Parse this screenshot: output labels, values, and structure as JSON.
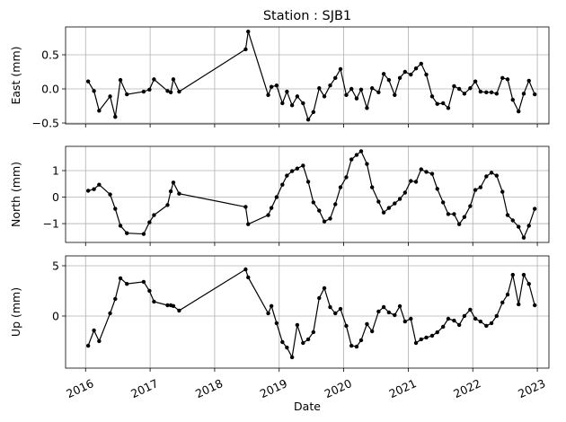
{
  "chart_data": [
    {
      "type": "line",
      "title": "Station : SJB1",
      "ylabel": "East (mm)",
      "color": "#000000",
      "grid": true,
      "xticklabels": false,
      "x": [
        2016.04,
        2016.13,
        2016.21,
        2016.38,
        2016.46,
        2016.54,
        2016.64,
        2016.9,
        2016.99,
        2017.06,
        2017.27,
        2017.32,
        2017.36,
        2017.45,
        2018.48,
        2018.52,
        2018.83,
        2018.88,
        2018.96,
        2019.05,
        2019.12,
        2019.2,
        2019.28,
        2019.37,
        2019.45,
        2019.53,
        2019.62,
        2019.7,
        2019.79,
        2019.87,
        2019.95,
        2020.04,
        2020.12,
        2020.2,
        2020.27,
        2020.36,
        2020.44,
        2020.54,
        2020.62,
        2020.7,
        2020.79,
        2020.87,
        2020.95,
        2021.04,
        2021.12,
        2021.2,
        2021.28,
        2021.37,
        2021.45,
        2021.54,
        2021.62,
        2021.71,
        2021.79,
        2021.87,
        2021.96,
        2022.04,
        2022.12,
        2022.21,
        2022.29,
        2022.37,
        2022.46,
        2022.54,
        2022.62,
        2022.71,
        2022.79,
        2022.87,
        2022.96
      ],
      "values": [
        0.11,
        -0.03,
        -0.32,
        -0.11,
        -0.41,
        0.13,
        -0.08,
        -0.04,
        -0.01,
        0.14,
        -0.03,
        -0.05,
        0.14,
        -0.04,
        0.58,
        0.84,
        -0.09,
        0.03,
        0.05,
        -0.21,
        -0.04,
        -0.24,
        -0.11,
        -0.21,
        -0.45,
        -0.34,
        0.01,
        -0.11,
        0.05,
        0.16,
        0.29,
        -0.09,
        0.0,
        -0.14,
        -0.01,
        -0.28,
        0.01,
        -0.05,
        0.22,
        0.13,
        -0.09,
        0.16,
        0.25,
        0.21,
        0.3,
        0.37,
        0.21,
        -0.11,
        -0.22,
        -0.21,
        -0.28,
        0.04,
        0.0,
        -0.07,
        0.01,
        0.11,
        -0.04,
        -0.05,
        -0.05,
        -0.07,
        0.16,
        0.14,
        -0.16,
        -0.33,
        -0.07,
        0.12,
        -0.08
      ],
      "xlim": [
        2015.69,
        2023.18
      ],
      "xticks": [
        2016,
        2017,
        2018,
        2019,
        2020,
        2021,
        2022,
        2023
      ],
      "ylim": [
        -0.513,
        0.908
      ],
      "yticks": [
        {
          "value": -0.5,
          "label": "−0.5"
        },
        {
          "value": 0,
          "label": "0.0"
        },
        0.5
      ]
    },
    {
      "type": "line",
      "ylabel": "North (mm)",
      "color": "#000000",
      "grid": true,
      "xticklabels": false,
      "x": [
        2016.04,
        2016.13,
        2016.21,
        2016.38,
        2016.46,
        2016.54,
        2016.64,
        2016.9,
        2016.99,
        2017.06,
        2017.27,
        2017.32,
        2017.36,
        2017.45,
        2018.48,
        2018.52,
        2018.83,
        2018.88,
        2018.96,
        2019.05,
        2019.12,
        2019.2,
        2019.28,
        2019.37,
        2019.45,
        2019.53,
        2019.62,
        2019.7,
        2019.79,
        2019.87,
        2019.95,
        2020.04,
        2020.12,
        2020.2,
        2020.27,
        2020.36,
        2020.44,
        2020.54,
        2020.62,
        2020.7,
        2020.79,
        2020.87,
        2020.95,
        2021.04,
        2021.12,
        2021.2,
        2021.28,
        2021.37,
        2021.45,
        2021.54,
        2021.62,
        2021.71,
        2021.79,
        2021.87,
        2021.96,
        2022.04,
        2022.12,
        2022.21,
        2022.29,
        2022.37,
        2022.46,
        2022.54,
        2022.62,
        2022.71,
        2022.79,
        2022.87,
        2022.96
      ],
      "values": [
        0.24,
        0.3,
        0.47,
        0.1,
        -0.44,
        -1.08,
        -1.36,
        -1.39,
        -0.95,
        -0.68,
        -0.3,
        0.22,
        0.55,
        0.13,
        -0.37,
        -1.02,
        -0.68,
        -0.41,
        0.0,
        0.47,
        0.81,
        0.98,
        1.08,
        1.19,
        0.58,
        -0.2,
        -0.51,
        -0.92,
        -0.81,
        -0.27,
        0.37,
        0.75,
        1.42,
        1.59,
        1.73,
        1.25,
        0.37,
        -0.17,
        -0.58,
        -0.41,
        -0.24,
        -0.07,
        0.17,
        0.61,
        0.58,
        1.05,
        0.95,
        0.88,
        0.31,
        -0.2,
        -0.64,
        -0.64,
        -1.02,
        -0.75,
        -0.34,
        0.27,
        0.37,
        0.78,
        0.92,
        0.81,
        0.2,
        -0.68,
        -0.88,
        -1.12,
        -1.53,
        -1.08,
        -0.44
      ],
      "xlim": [
        2015.69,
        2023.18
      ],
      "xticks": [
        2016,
        2017,
        2018,
        2019,
        2020,
        2021,
        2022,
        2023
      ],
      "ylim": [
        -1.71,
        1.915
      ],
      "yticks": [
        {
          "value": -1,
          "label": "−1"
        },
        0,
        1
      ]
    },
    {
      "type": "line",
      "ylabel": "Up (mm)",
      "xlabel": "Date",
      "color": "#000000",
      "grid": true,
      "xticklabels": true,
      "x": [
        2016.04,
        2016.13,
        2016.21,
        2016.38,
        2016.46,
        2016.54,
        2016.64,
        2016.9,
        2016.99,
        2017.06,
        2017.27,
        2017.32,
        2017.36,
        2017.45,
        2018.48,
        2018.52,
        2018.83,
        2018.88,
        2018.96,
        2019.05,
        2019.12,
        2019.2,
        2019.28,
        2019.37,
        2019.45,
        2019.53,
        2019.62,
        2019.7,
        2019.79,
        2019.87,
        2019.95,
        2020.04,
        2020.12,
        2020.2,
        2020.27,
        2020.36,
        2020.44,
        2020.54,
        2020.62,
        2020.7,
        2020.79,
        2020.87,
        2020.95,
        2021.04,
        2021.12,
        2021.2,
        2021.28,
        2021.37,
        2021.45,
        2021.54,
        2021.62,
        2021.71,
        2021.79,
        2021.87,
        2021.96,
        2022.04,
        2022.12,
        2022.21,
        2022.29,
        2022.37,
        2022.46,
        2022.54,
        2022.62,
        2022.71,
        2022.79,
        2022.87,
        2022.96
      ],
      "values": [
        -2.95,
        -1.43,
        -2.5,
        0.27,
        1.7,
        3.75,
        3.2,
        3.4,
        2.5,
        1.43,
        1.07,
        1.07,
        1.0,
        0.54,
        4.64,
        3.84,
        0.27,
        1.0,
        -0.71,
        -2.59,
        -3.13,
        -4.1,
        -0.89,
        -2.68,
        -2.32,
        -1.6,
        1.79,
        2.77,
        0.89,
        0.27,
        0.71,
        -0.98,
        -2.95,
        -3.04,
        -2.41,
        -0.8,
        -1.52,
        0.45,
        0.89,
        0.36,
        0.09,
        0.98,
        -0.54,
        -0.27,
        -2.68,
        -2.32,
        -2.14,
        -1.96,
        -1.61,
        -1.07,
        -0.27,
        -0.45,
        -0.89,
        0.0,
        0.63,
        -0.27,
        -0.54,
        -0.98,
        -0.71,
        0.0,
        1.34,
        2.14,
        4.1,
        1.16,
        4.1,
        3.2,
        1.07
      ],
      "xlim": [
        2015.69,
        2023.18
      ],
      "xticks": [
        2016,
        2017,
        2018,
        2019,
        2020,
        2021,
        2022,
        2023
      ],
      "ylim": [
        -5.18,
        5.98
      ],
      "yticks": [
        0,
        5
      ]
    }
  ]
}
